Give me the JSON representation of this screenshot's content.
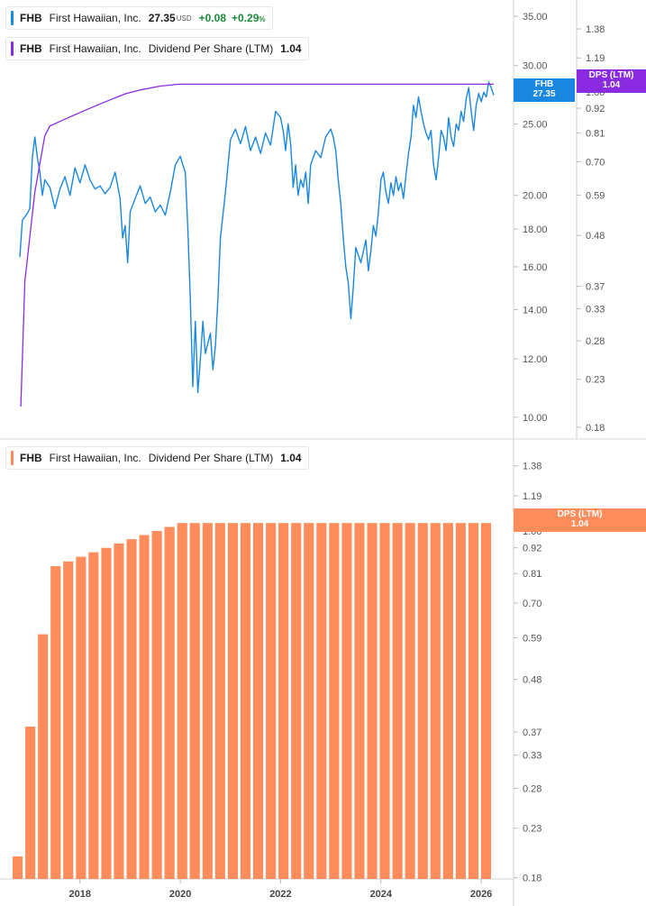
{
  "legend_price": {
    "ticker": "FHB",
    "name": "First Hawaiian, Inc.",
    "price": "27.35",
    "currency": "USD",
    "change": "+0.08",
    "change_pct": "+0.29",
    "pct_sign": "%",
    "color": "#1a88e0"
  },
  "legend_dps_top": {
    "ticker": "FHB",
    "name": "First Hawaiian, Inc.",
    "metric": "Dividend Per Share (LTM)",
    "value": "1.04",
    "color": "#8a2be2"
  },
  "legend_dps_bottom": {
    "ticker": "FHB",
    "name": "First Hawaiian, Inc.",
    "metric": "Dividend Per Share (LTM)",
    "value": "1.04",
    "color": "#ff8c5a"
  },
  "tags": {
    "price": {
      "line1": "FHB",
      "line2": "27.35",
      "color": "#1a88e0"
    },
    "dps_top": {
      "line1": "DPS (LTM)",
      "line2": "1.04",
      "color": "#8a2be2"
    },
    "dps_bottom": {
      "line1": "DPS (LTM)",
      "line2": "1.04",
      "color": "#ff8c5a"
    }
  },
  "chart_data": [
    {
      "type": "line",
      "scale": "log",
      "price_axis": {
        "ticks": [
          "35.00",
          "30.00",
          "25.00",
          "20.00",
          "18.00",
          "16.00",
          "14.00",
          "12.00",
          "10.00"
        ],
        "ylim": [
          9.8,
          36
        ]
      },
      "dps_axis": {
        "ticks": [
          "1.38",
          "1.19",
          "1.00",
          "0.92",
          "0.81",
          "0.70",
          "0.59",
          "0.48",
          "0.37",
          "0.33",
          "0.28",
          "0.23",
          "0.18"
        ],
        "ylim": [
          0.175,
          1.5
        ]
      },
      "series": [
        {
          "name": "FHB",
          "axis": "price",
          "color": "#1a88e0",
          "points": [
            [
              2016.8,
              16.5
            ],
            [
              2016.85,
              18.5
            ],
            [
              2016.95,
              18.9
            ],
            [
              2017.0,
              19.2
            ],
            [
              2017.05,
              22.5
            ],
            [
              2017.1,
              24.0
            ],
            [
              2017.15,
              22.5
            ],
            [
              2017.2,
              21.5
            ],
            [
              2017.25,
              20.0
            ],
            [
              2017.3,
              21.0
            ],
            [
              2017.4,
              20.5
            ],
            [
              2017.5,
              19.2
            ],
            [
              2017.6,
              20.4
            ],
            [
              2017.7,
              21.2
            ],
            [
              2017.8,
              20.0
            ],
            [
              2017.9,
              21.8
            ],
            [
              2018.0,
              20.8
            ],
            [
              2018.1,
              22.0
            ],
            [
              2018.2,
              21.0
            ],
            [
              2018.3,
              20.4
            ],
            [
              2018.4,
              20.6
            ],
            [
              2018.5,
              20.1
            ],
            [
              2018.6,
              20.5
            ],
            [
              2018.7,
              21.5
            ],
            [
              2018.8,
              19.8
            ],
            [
              2018.85,
              17.5
            ],
            [
              2018.9,
              18.2
            ],
            [
              2018.95,
              16.2
            ],
            [
              2019.0,
              19.0
            ],
            [
              2019.1,
              19.8
            ],
            [
              2019.2,
              20.6
            ],
            [
              2019.3,
              19.5
            ],
            [
              2019.4,
              19.9
            ],
            [
              2019.5,
              19.0
            ],
            [
              2019.6,
              19.4
            ],
            [
              2019.7,
              18.8
            ],
            [
              2019.8,
              20.2
            ],
            [
              2019.9,
              22.0
            ],
            [
              2020.0,
              22.6
            ],
            [
              2020.05,
              22.0
            ],
            [
              2020.1,
              21.5
            ],
            [
              2020.15,
              18.0
            ],
            [
              2020.2,
              14.5
            ],
            [
              2020.25,
              11.0
            ],
            [
              2020.3,
              13.5
            ],
            [
              2020.35,
              10.8
            ],
            [
              2020.4,
              12.0
            ],
            [
              2020.45,
              13.5
            ],
            [
              2020.5,
              12.2
            ],
            [
              2020.6,
              13.0
            ],
            [
              2020.65,
              11.6
            ],
            [
              2020.7,
              12.5
            ],
            [
              2020.75,
              14.5
            ],
            [
              2020.8,
              17.5
            ],
            [
              2020.9,
              20.2
            ],
            [
              2021.0,
              23.8
            ],
            [
              2021.1,
              24.6
            ],
            [
              2021.2,
              23.5
            ],
            [
              2021.3,
              24.8
            ],
            [
              2021.4,
              23.0
            ],
            [
              2021.5,
              24.0
            ],
            [
              2021.6,
              22.8
            ],
            [
              2021.7,
              24.3
            ],
            [
              2021.8,
              23.4
            ],
            [
              2021.9,
              26.0
            ],
            [
              2022.0,
              25.5
            ],
            [
              2022.05,
              24.5
            ],
            [
              2022.1,
              23.0
            ],
            [
              2022.15,
              25.0
            ],
            [
              2022.2,
              23.5
            ],
            [
              2022.25,
              20.5
            ],
            [
              2022.3,
              22.0
            ],
            [
              2022.35,
              20.0
            ],
            [
              2022.4,
              21.0
            ],
            [
              2022.45,
              20.5
            ],
            [
              2022.5,
              21.5
            ],
            [
              2022.55,
              19.5
            ],
            [
              2022.6,
              22.0
            ],
            [
              2022.7,
              23.0
            ],
            [
              2022.8,
              22.5
            ],
            [
              2022.9,
              24.0
            ],
            [
              2023.0,
              24.6
            ],
            [
              2023.05,
              24.0
            ],
            [
              2023.1,
              23.0
            ],
            [
              2023.15,
              21.0
            ],
            [
              2023.2,
              19.5
            ],
            [
              2023.25,
              17.5
            ],
            [
              2023.3,
              16.0
            ],
            [
              2023.35,
              15.2
            ],
            [
              2023.4,
              13.6
            ],
            [
              2023.45,
              15.0
            ],
            [
              2023.5,
              17.0
            ],
            [
              2023.6,
              16.2
            ],
            [
              2023.7,
              17.4
            ],
            [
              2023.75,
              15.8
            ],
            [
              2023.8,
              16.8
            ],
            [
              2023.85,
              18.2
            ],
            [
              2023.9,
              17.6
            ],
            [
              2023.95,
              19.0
            ],
            [
              2024.0,
              21.0
            ],
            [
              2024.05,
              21.5
            ],
            [
              2024.1,
              20.2
            ],
            [
              2024.15,
              19.5
            ],
            [
              2024.2,
              20.8
            ],
            [
              2024.25,
              20.0
            ],
            [
              2024.3,
              21.2
            ],
            [
              2024.35,
              20.3
            ],
            [
              2024.4,
              20.8
            ],
            [
              2024.45,
              19.8
            ],
            [
              2024.5,
              21.3
            ],
            [
              2024.55,
              22.8
            ],
            [
              2024.6,
              24.0
            ],
            [
              2024.65,
              26.5
            ],
            [
              2024.7,
              25.5
            ],
            [
              2024.75,
              27.2
            ],
            [
              2024.8,
              26.0
            ],
            [
              2024.85,
              25.0
            ],
            [
              2024.9,
              24.3
            ],
            [
              2024.95,
              23.8
            ],
            [
              2025.0,
              24.5
            ],
            [
              2025.05,
              22.0
            ],
            [
              2025.1,
              21.0
            ],
            [
              2025.15,
              22.5
            ],
            [
              2025.2,
              24.5
            ],
            [
              2025.25,
              24.0
            ],
            [
              2025.3,
              23.0
            ],
            [
              2025.35,
              25.5
            ],
            [
              2025.4,
              24.0
            ],
            [
              2025.45,
              23.3
            ],
            [
              2025.5,
              25.0
            ],
            [
              2025.55,
              24.5
            ],
            [
              2025.6,
              26.0
            ],
            [
              2025.65,
              25.2
            ],
            [
              2025.7,
              27.0
            ],
            [
              2025.75,
              28.0
            ],
            [
              2025.8,
              26.0
            ],
            [
              2025.85,
              24.5
            ],
            [
              2025.9,
              26.5
            ],
            [
              2025.95,
              27.5
            ],
            [
              2026.0,
              26.8
            ],
            [
              2026.05,
              27.6
            ],
            [
              2026.1,
              27.2
            ],
            [
              2026.15,
              28.5
            ],
            [
              2026.2,
              28.0
            ],
            [
              2026.25,
              27.35
            ]
          ]
        },
        {
          "name": "DPS (LTM)",
          "axis": "dps",
          "color": "#8a2be2",
          "points": [
            [
              2016.82,
              0.2
            ],
            [
              2016.9,
              0.38
            ],
            [
              2017.1,
              0.6
            ],
            [
              2017.3,
              0.8
            ],
            [
              2017.4,
              0.84
            ],
            [
              2017.6,
              0.86
            ],
            [
              2017.8,
              0.88
            ],
            [
              2018.0,
              0.9
            ],
            [
              2018.3,
              0.93
            ],
            [
              2018.6,
              0.96
            ],
            [
              2018.9,
              0.99
            ],
            [
              2019.2,
              1.01
            ],
            [
              2019.6,
              1.03
            ],
            [
              2019.98,
              1.04
            ],
            [
              2020.5,
              1.04
            ],
            [
              2021.5,
              1.04
            ],
            [
              2022.5,
              1.04
            ],
            [
              2023.5,
              1.04
            ],
            [
              2024.5,
              1.04
            ],
            [
              2025.5,
              1.04
            ],
            [
              2026.25,
              1.04
            ]
          ]
        }
      ],
      "x_range": [
        2016.78,
        2026.35
      ]
    },
    {
      "type": "bar",
      "scale": "log",
      "axis": {
        "ticks": [
          "1.38",
          "1.19",
          "1.00",
          "0.92",
          "0.81",
          "0.70",
          "0.59",
          "0.48",
          "0.37",
          "0.33",
          "0.28",
          "0.23",
          "0.18"
        ],
        "ylim": [
          0.175,
          1.5
        ]
      },
      "x_ticks": [
        "2018",
        "2020",
        "2022",
        "2024",
        "2026"
      ],
      "series": [
        {
          "name": "DPS (LTM)",
          "color": "#ff8c5a",
          "values": [
            0.2,
            0.38,
            0.6,
            0.84,
            0.86,
            0.88,
            0.9,
            0.92,
            0.94,
            0.96,
            0.98,
            1.0,
            1.02,
            1.04,
            1.04,
            1.04,
            1.04,
            1.04,
            1.04,
            1.04,
            1.04,
            1.04,
            1.04,
            1.04,
            1.04,
            1.04,
            1.04,
            1.04,
            1.04,
            1.04,
            1.04,
            1.04,
            1.04,
            1.04,
            1.04,
            1.04,
            1.04,
            1.04
          ]
        }
      ]
    }
  ]
}
